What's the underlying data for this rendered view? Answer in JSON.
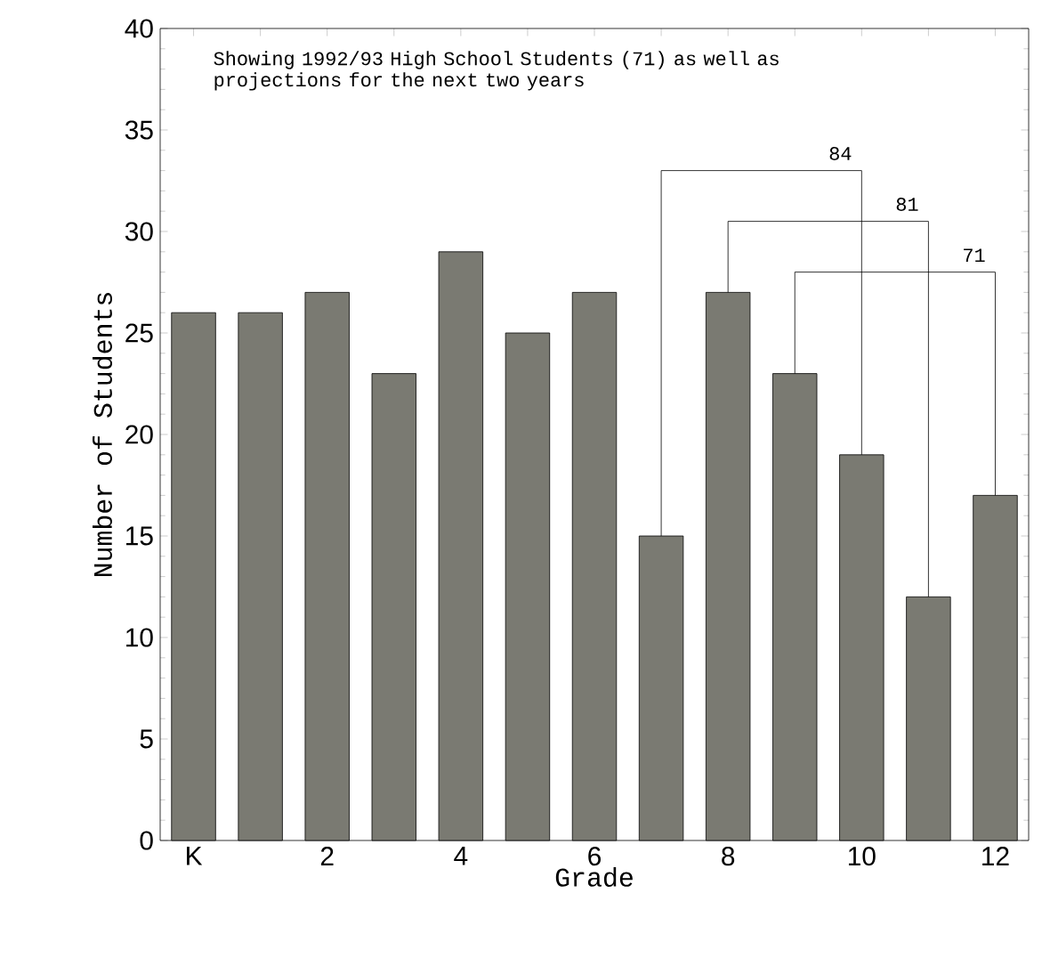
{
  "chart_data": {
    "type": "bar",
    "xlabel": "Grade",
    "ylabel": "Number of Students",
    "categories": [
      "K",
      null,
      "2",
      null,
      "4",
      null,
      "6",
      null,
      "8",
      null,
      "10",
      null,
      "12"
    ],
    "values": [
      26,
      26,
      27,
      23,
      29,
      25,
      27,
      15,
      27,
      23,
      19,
      12,
      17
    ],
    "color": "#7a7a72",
    "ylim": [
      0,
      40
    ],
    "yticks": [
      0,
      5,
      10,
      15,
      20,
      25,
      30,
      35,
      40
    ],
    "annotations": [
      "Showing 1992/93 High School Students (71) as well as projections for the next two years",
      "84",
      "81",
      "71"
    ]
  }
}
